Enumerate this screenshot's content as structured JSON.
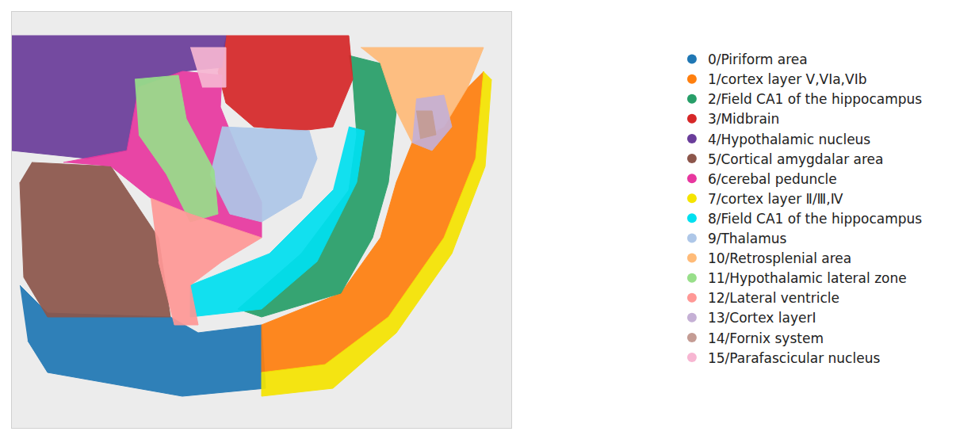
{
  "chart_data": {
    "type": "area",
    "tick_labels": false,
    "legend": "right",
    "marker": "circle",
    "xlim": [
      15,
      645
    ],
    "ylim": [
      540,
      15
    ],
    "series": [
      {
        "name": "0/Piriform area",
        "color": "#1f77b4",
        "x": [
          25,
          60,
          215,
          250,
          330,
          335,
          230,
          60,
          35
        ],
        "y": [
          360,
          395,
          400,
          420,
          410,
          490,
          500,
          470,
          430
        ]
      },
      {
        "name": "1/cortex layer V,VIa,VIb",
        "color": "#ff7f0e",
        "x": [
          610,
          600,
          560,
          490,
          410,
          330,
          330,
          430,
          480,
          500,
          520,
          560,
          590
        ],
        "y": [
          90,
          200,
          300,
          400,
          460,
          470,
          410,
          370,
          300,
          230,
          180,
          160,
          110
        ]
      },
      {
        "name": "2/Field CA1 of the hippocampus",
        "color": "#279e68",
        "x": [
          440,
          480,
          500,
          490,
          470,
          430,
          330,
          300,
          380,
          440,
          450,
          445
        ],
        "y": [
          70,
          80,
          140,
          230,
          300,
          370,
          400,
          390,
          320,
          240,
          170,
          100
        ]
      },
      {
        "name": "3/Midbrain",
        "color": "#d62728",
        "x": [
          285,
          440,
          445,
          420,
          380,
          320,
          285,
          275
        ],
        "y": [
          45,
          45,
          100,
          160,
          165,
          160,
          130,
          90
        ]
      },
      {
        "name": "4/Hypothalamic nucleus",
        "color": "#6a3d9a",
        "x": [
          15,
          285,
          280,
          230,
          175,
          160,
          110,
          60,
          15
        ],
        "y": [
          45,
          45,
          85,
          90,
          110,
          190,
          200,
          195,
          190
        ]
      },
      {
        "name": "5/Cortical amygdalar area",
        "color": "#8c564b",
        "x": [
          40,
          140,
          200,
          215,
          60,
          30,
          25
        ],
        "y": [
          205,
          210,
          300,
          400,
          400,
          350,
          230
        ]
      },
      {
        "name": "6/cerebal peduncle",
        "color": "#e8379f",
        "x": [
          80,
          160,
          175,
          230,
          280,
          278,
          300,
          330,
          330,
          240,
          190,
          140
        ],
        "y": [
          205,
          190,
          110,
          90,
          95,
          135,
          190,
          255,
          300,
          270,
          250,
          210
        ]
      },
      {
        "name": "7/cortex layer Ⅱ/Ⅲ,Ⅳ",
        "color": "#f5e400",
        "x": [
          620,
          612,
          570,
          500,
          420,
          330,
          330,
          410,
          490,
          560,
          600,
          610
        ],
        "y": [
          100,
          210,
          320,
          420,
          490,
          500,
          470,
          460,
          400,
          300,
          200,
          90
        ]
      },
      {
        "name": "8/Field CA1 of the hippocampus",
        "color": "#00e0f0",
        "x": [
          440,
          460,
          450,
          400,
          330,
          240,
          240,
          340,
          420
        ],
        "y": [
          160,
          165,
          230,
          330,
          390,
          400,
          360,
          320,
          240
        ]
      },
      {
        "name": "9/Thalamus",
        "color": "#aec7e8",
        "x": [
          280,
          390,
          400,
          380,
          330,
          290,
          265
        ],
        "y": [
          160,
          165,
          200,
          250,
          280,
          270,
          220
        ]
      },
      {
        "name": "10/Retrosplenial area",
        "color": "#ffbb78",
        "x": [
          455,
          610,
          590,
          560,
          520,
          500,
          480
        ],
        "y": [
          60,
          60,
          110,
          160,
          180,
          140,
          80
        ]
      },
      {
        "name": "11/Hypothalamic lateral zone",
        "color": "#98df8a",
        "x": [
          170,
          225,
          235,
          270,
          275,
          240,
          210,
          175
        ],
        "y": [
          100,
          95,
          150,
          215,
          270,
          280,
          220,
          170
        ]
      },
      {
        "name": "12/Lateral ventricle",
        "color": "#ff9896",
        "x": [
          190,
          240,
          330,
          280,
          240,
          250,
          220,
          200
        ],
        "y": [
          250,
          270,
          300,
          330,
          360,
          410,
          410,
          330
        ]
      },
      {
        "name": "13/Cortex layerI",
        "color": "#c5b0d5",
        "x": [
          525,
          560,
          570,
          545,
          520
        ],
        "y": [
          125,
          120,
          160,
          190,
          180
        ]
      },
      {
        "name": "14/Fornix system",
        "color": "#c49c94",
        "x": [
          525,
          545,
          550,
          530
        ],
        "y": [
          140,
          140,
          170,
          175
        ]
      },
      {
        "name": "15/Parafascicular nucleus",
        "color": "#f7b6d2",
        "x": [
          240,
          285,
          285,
          255
        ],
        "y": [
          60,
          60,
          110,
          110
        ]
      }
    ]
  }
}
